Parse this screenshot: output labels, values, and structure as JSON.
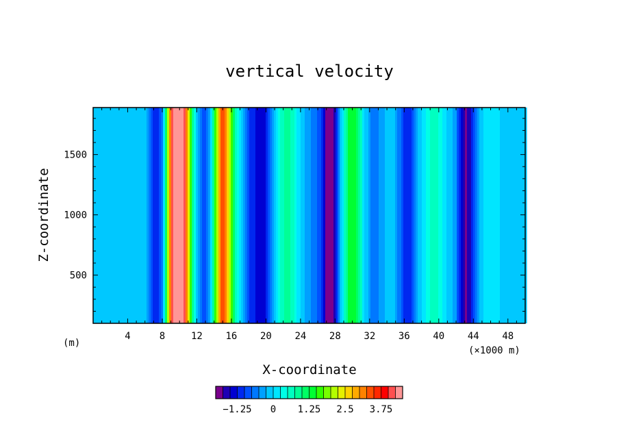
{
  "chart_data": {
    "type": "heatmap",
    "title": "vertical velocity",
    "xlabel": "X-coordinate",
    "ylabel": "Z-coordinate",
    "x_unit_left": "(m)",
    "x_unit_right": "(×1000 m)",
    "xlim": [
      0,
      50
    ],
    "ylim": [
      100,
      1890
    ],
    "x_ticks": [
      4,
      8,
      12,
      16,
      20,
      24,
      28,
      32,
      36,
      40,
      44,
      48
    ],
    "y_ticks": [
      500,
      1000,
      1500
    ],
    "colorbar": {
      "min": -2.0,
      "max": 4.25,
      "step": 0.25,
      "tick_values": [
        -1.25,
        0,
        1.25,
        2.5,
        3.75
      ],
      "tick_labels": [
        "−1.25",
        "0",
        "1.25",
        "2.5",
        "3.75"
      ],
      "colors": [
        "#7a008c",
        "#1e00b4",
        "#0000d2",
        "#0028f0",
        "#0050ff",
        "#0078ff",
        "#00a0ff",
        "#00c8ff",
        "#00e6ff",
        "#00ffe6",
        "#00ffc0",
        "#00ff96",
        "#00ff64",
        "#00ff32",
        "#32ff00",
        "#78ff00",
        "#b4ff00",
        "#e6f000",
        "#ffd200",
        "#ffaa00",
        "#ff8200",
        "#ff5000",
        "#ff2800",
        "#ff0000",
        "#ff5050",
        "#ff9696"
      ]
    },
    "background_value": -0.05,
    "columns": [
      {
        "x": 7.6,
        "value": -1.4
      },
      {
        "x": 9.2,
        "value": 2.4
      },
      {
        "x": 10.1,
        "value": 3.9
      },
      {
        "x": 11.2,
        "value": 0.5
      },
      {
        "x": 12.8,
        "value": -0.9
      },
      {
        "x": 15.0,
        "value": 3.3
      },
      {
        "x": 16.6,
        "value": 0.4
      },
      {
        "x": 18.0,
        "value": -0.9
      },
      {
        "x": 19.6,
        "value": -1.4
      },
      {
        "x": 22.5,
        "value": 0.9
      },
      {
        "x": 25.5,
        "value": -0.5
      },
      {
        "x": 27.4,
        "value": -2.0
      },
      {
        "x": 30.0,
        "value": 1.5
      },
      {
        "x": 32.6,
        "value": -0.6
      },
      {
        "x": 36.3,
        "value": -1.2
      },
      {
        "x": 39.4,
        "value": 0.6
      },
      {
        "x": 43.2,
        "value": -1.8
      },
      {
        "x": 46.0,
        "value": 0.1
      }
    ]
  }
}
